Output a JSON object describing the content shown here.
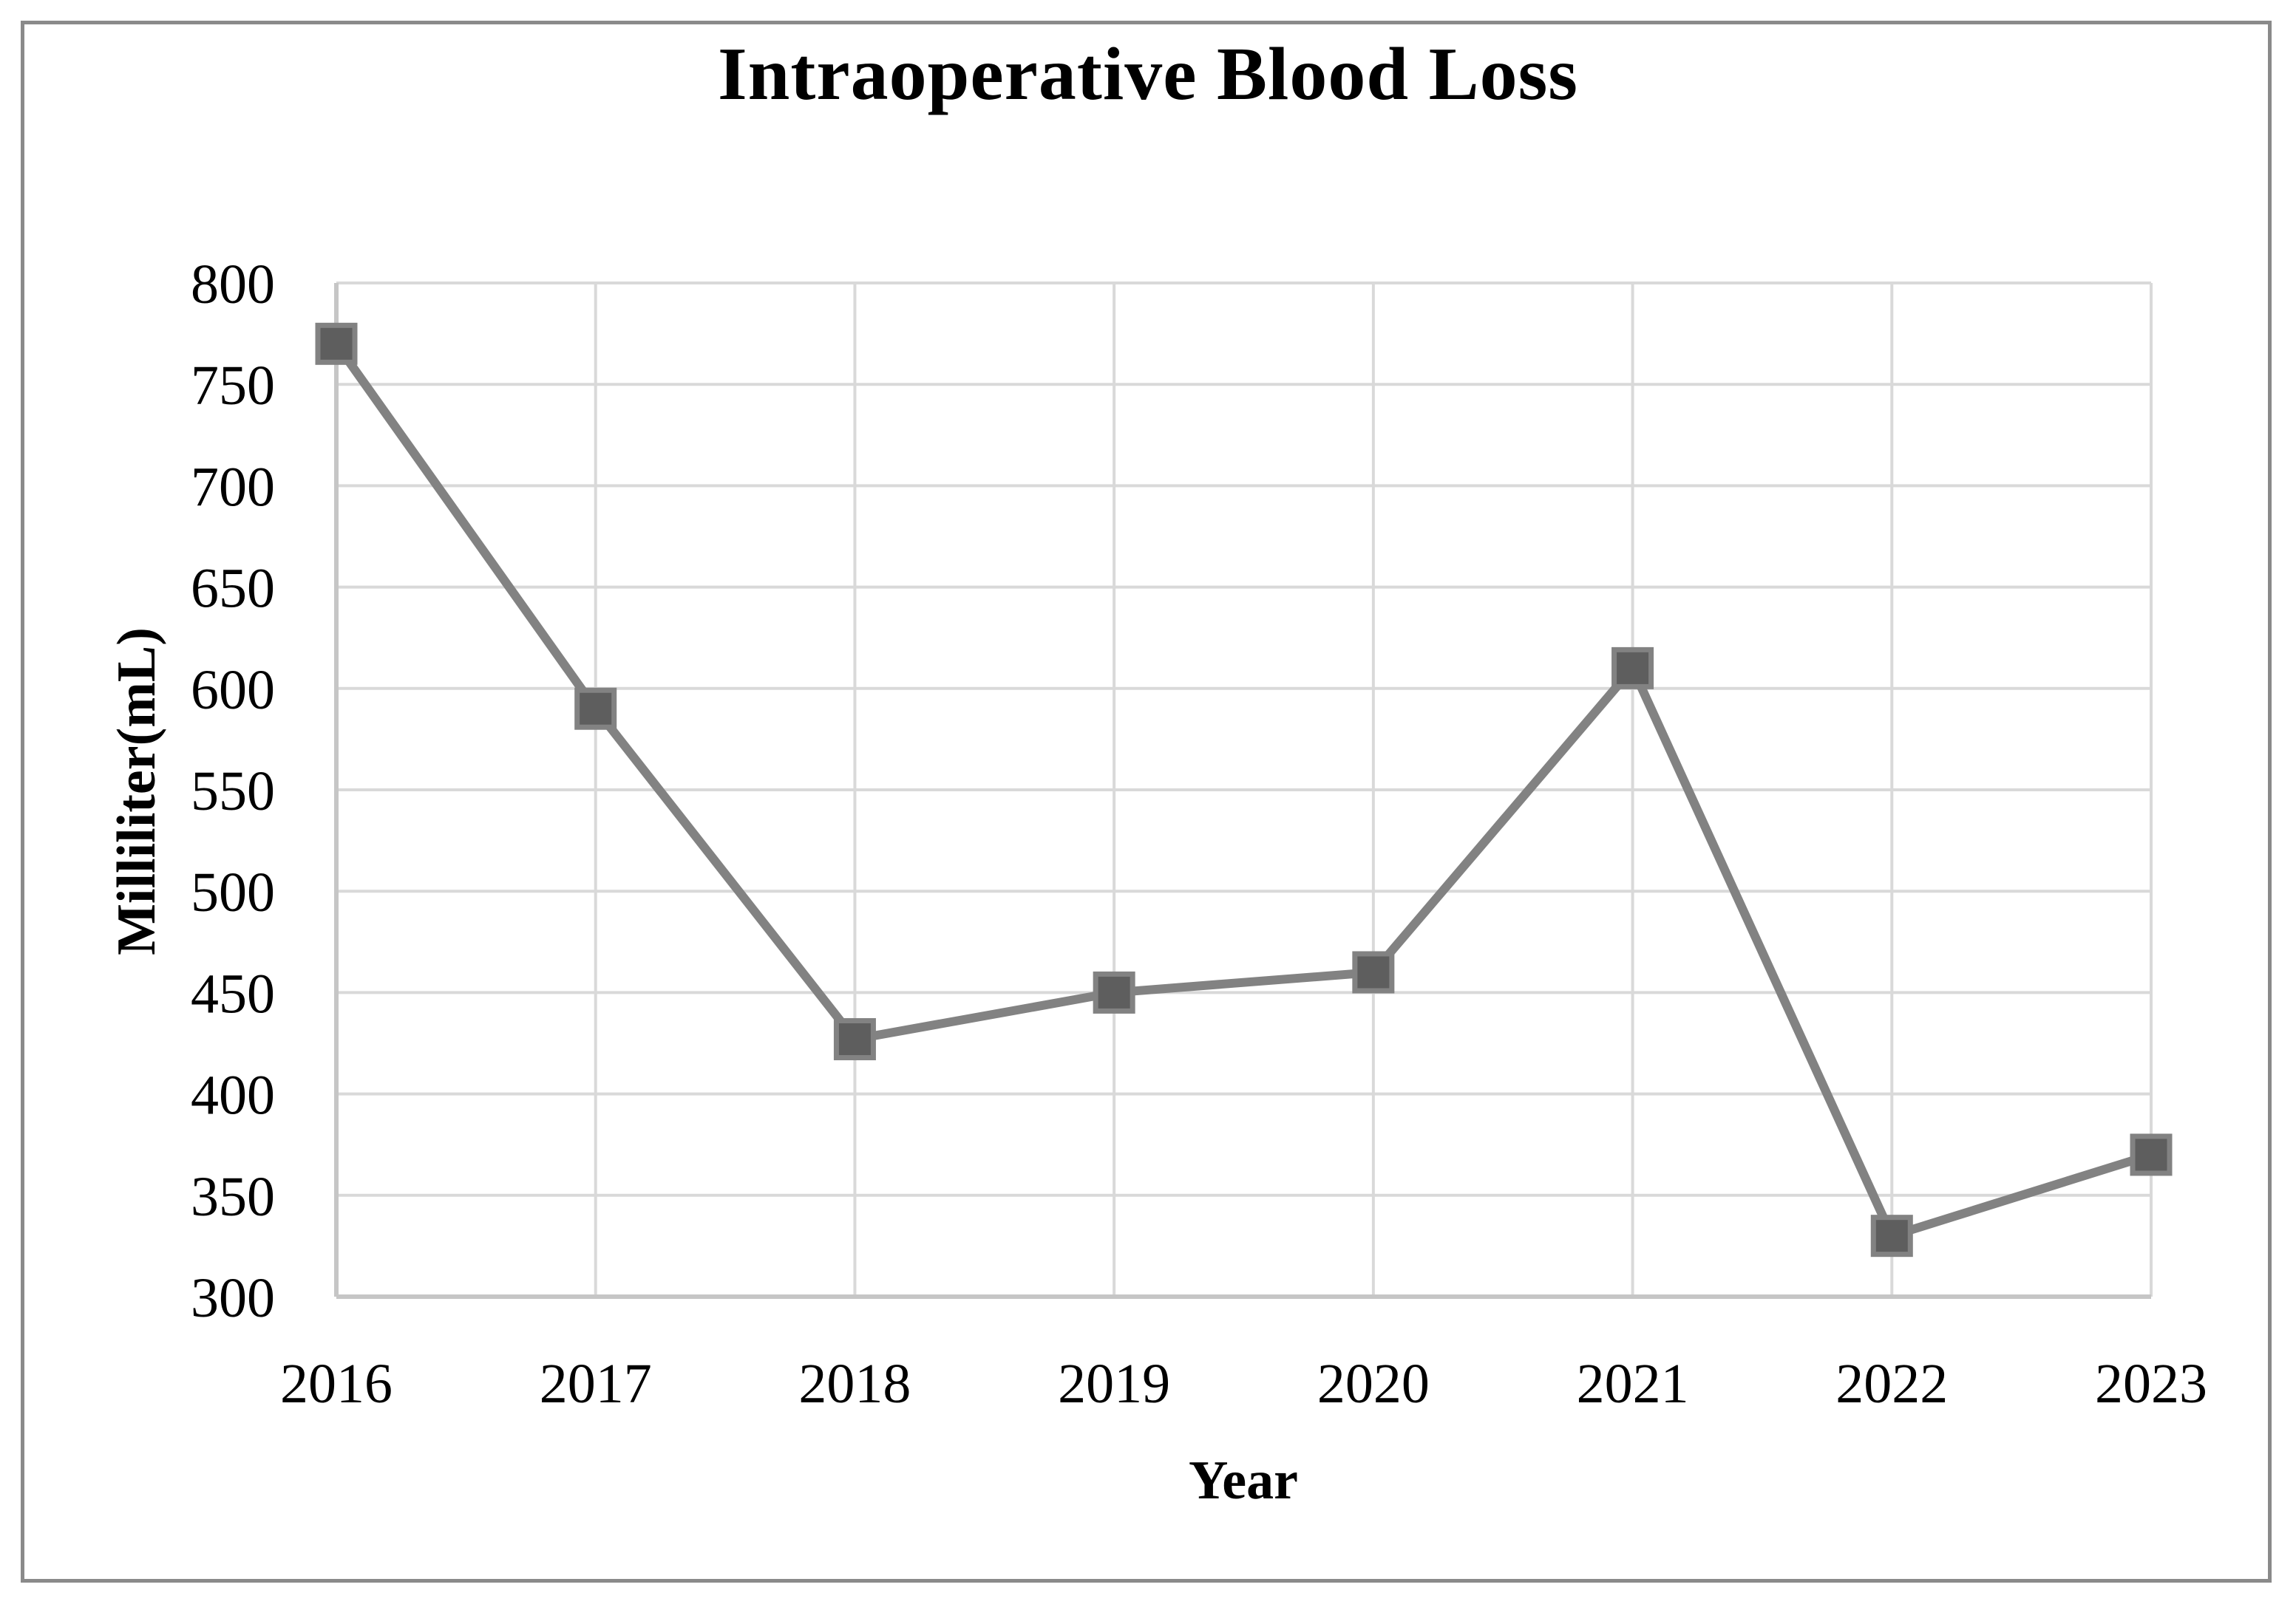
{
  "chart_data": {
    "type": "line",
    "title": "Intraoperative Blood Loss",
    "xlabel": "Year",
    "ylabel": "Milliliter(mL)",
    "categories": [
      "2016",
      "2017",
      "2018",
      "2019",
      "2020",
      "2021",
      "2022",
      "2023"
    ],
    "values": [
      770,
      590,
      427,
      450,
      460,
      610,
      330,
      370
    ],
    "ylim": [
      300,
      800
    ],
    "ytick_step": 50,
    "y_ticks": [
      800,
      750,
      700,
      650,
      600,
      550,
      500,
      450,
      400,
      350,
      300
    ],
    "grid": true,
    "legend": "none",
    "marker_shape": "square",
    "colors": {
      "line": "#828282",
      "marker_fill": "#5e5e5e",
      "gridline": "#d9d9d9",
      "axis_line": "#c6c6c6",
      "text": "#000000",
      "frame_border": "#8a8a8a",
      "background": "#ffffff"
    }
  }
}
